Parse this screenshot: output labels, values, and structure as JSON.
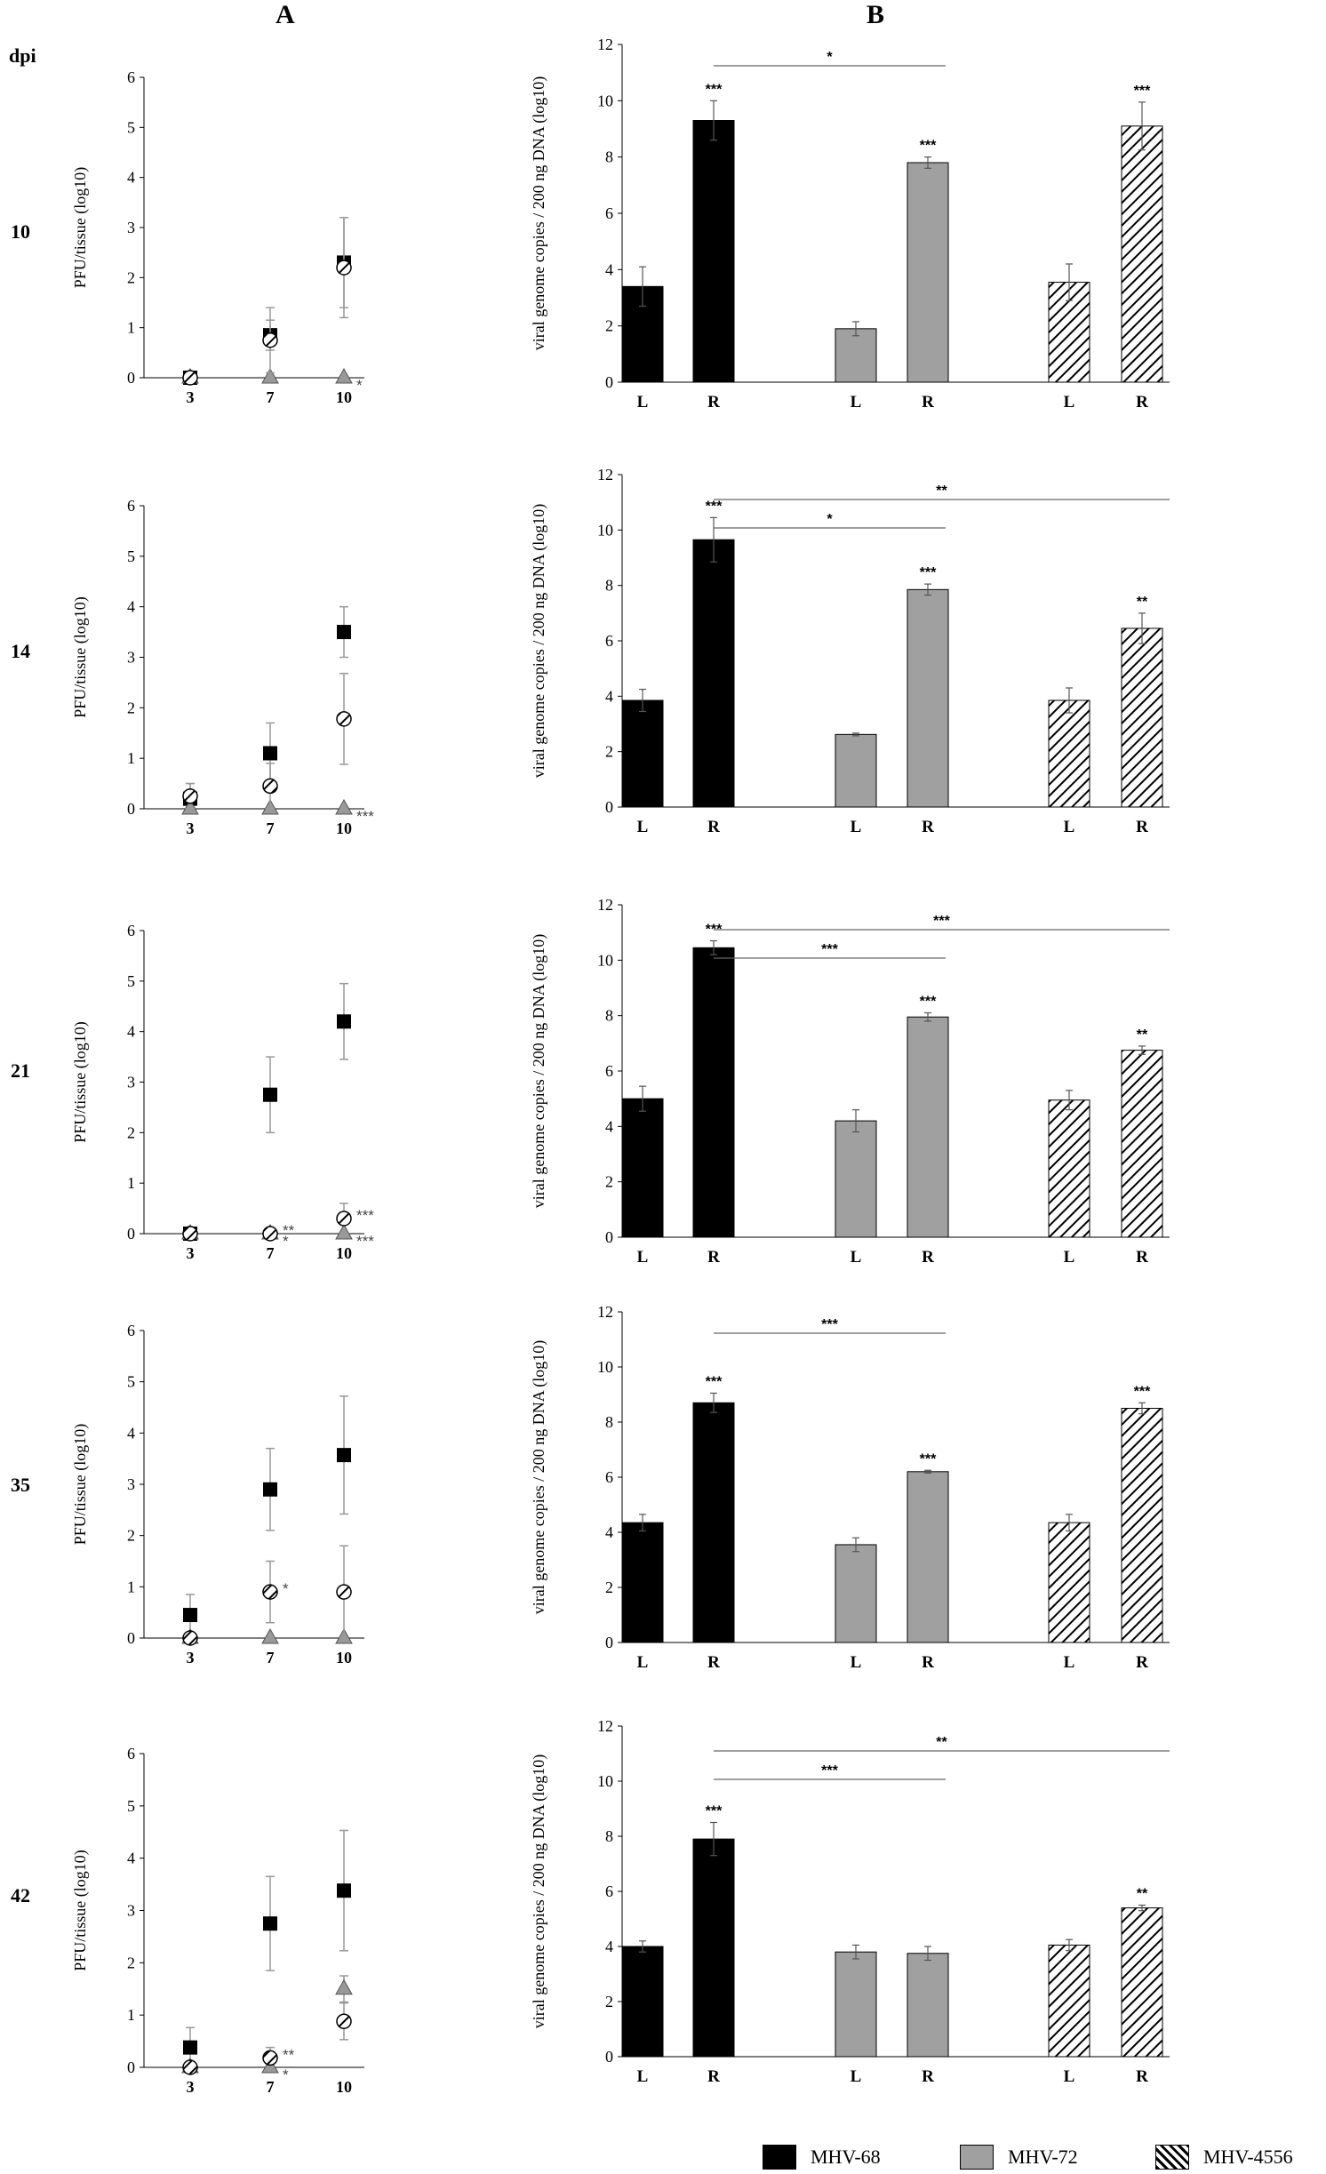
{
  "headers": {
    "a": "A",
    "b": "B",
    "dpi": "dpi"
  },
  "colors": {
    "mhv68": "#000000",
    "mhv72": "#a0a0a0",
    "mhv4556": "hatched"
  },
  "legend": [
    "MHV-68",
    "MHV-72",
    "MHV-4556"
  ],
  "chart_data": [
    {
      "panel": "A",
      "row": "10",
      "type": "scatter",
      "ylabel": "PFU/tissue (log10)",
      "ylim": [
        0,
        6
      ],
      "yticks": [
        "0",
        "1",
        "2",
        "3",
        "4",
        "5",
        "6"
      ],
      "categories": [
        "3",
        "7",
        "10"
      ],
      "series": [
        {
          "name": "MHV-68",
          "values": [
            0,
            0.85,
            2.3
          ],
          "err": [
            0,
            0.3,
            0.9
          ]
        },
        {
          "name": "MHV-72",
          "values": [
            0,
            0,
            0
          ],
          "err": [
            0,
            0,
            0
          ]
        },
        {
          "name": "MHV-4556",
          "values": [
            0,
            0.75,
            2.2
          ],
          "err": [
            0,
            0.65,
            1.0
          ]
        }
      ],
      "annotations": [
        {
          "text": "*",
          "cat": 2,
          "series": "MHV-72"
        }
      ]
    },
    {
      "panel": "A",
      "row": "14",
      "type": "scatter",
      "ylabel": "PFU/tissue (log10)",
      "ylim": [
        0,
        6
      ],
      "yticks": [
        "0",
        "1",
        "2",
        "3",
        "4",
        "5",
        "6"
      ],
      "categories": [
        "3",
        "7",
        "10"
      ],
      "series": [
        {
          "name": "MHV-68",
          "values": [
            0.2,
            1.1,
            3.5
          ],
          "err": [
            0.3,
            0.6,
            0.5
          ]
        },
        {
          "name": "MHV-72",
          "values": [
            0,
            0,
            0
          ],
          "err": [
            0,
            0,
            0
          ]
        },
        {
          "name": "MHV-4556",
          "values": [
            0.25,
            0.45,
            1.78
          ],
          "err": [
            0.25,
            0.45,
            0.9
          ]
        }
      ],
      "annotations": [
        {
          "text": "***",
          "cat": 2,
          "series": "MHV-72"
        }
      ]
    },
    {
      "panel": "A",
      "row": "21",
      "type": "scatter",
      "ylabel": "PFU/tissue (log10)",
      "ylim": [
        0,
        6
      ],
      "yticks": [
        "0",
        "1",
        "2",
        "3",
        "4",
        "5",
        "6"
      ],
      "categories": [
        "3",
        "7",
        "10"
      ],
      "series": [
        {
          "name": "MHV-68",
          "values": [
            0,
            2.75,
            4.2
          ],
          "err": [
            0,
            0.75,
            0.75
          ]
        },
        {
          "name": "MHV-72",
          "values": [
            0,
            0,
            0
          ],
          "err": [
            0,
            0,
            0
          ]
        },
        {
          "name": "MHV-4556",
          "values": [
            0,
            0,
            0.3
          ],
          "err": [
            0,
            0,
            0.3
          ]
        }
      ],
      "annotations": [
        {
          "text": "**",
          "cat": 1,
          "series": "MHV-4556"
        },
        {
          "text": "*",
          "cat": 1,
          "series": "MHV-72"
        },
        {
          "text": "***",
          "cat": 2,
          "series": "MHV-4556"
        },
        {
          "text": "***",
          "cat": 2,
          "series": "MHV-72"
        }
      ]
    },
    {
      "panel": "A",
      "row": "35",
      "type": "scatter",
      "ylabel": "PFU/tissue (log10)",
      "ylim": [
        0,
        6
      ],
      "yticks": [
        "0",
        "1",
        "2",
        "3",
        "4",
        "5",
        "6"
      ],
      "categories": [
        "3",
        "7",
        "10"
      ],
      "series": [
        {
          "name": "MHV-68",
          "values": [
            0.45,
            2.9,
            3.57
          ],
          "err": [
            0.4,
            0.8,
            1.15
          ]
        },
        {
          "name": "MHV-72",
          "values": [
            0,
            0,
            0
          ],
          "err": [
            0,
            0,
            0
          ]
        },
        {
          "name": "MHV-4556",
          "values": [
            0,
            0.9,
            0.9
          ],
          "err": [
            0,
            0.6,
            0.9
          ]
        }
      ],
      "annotations": [
        {
          "text": "*",
          "cat": 1,
          "series": "MHV-4556"
        }
      ]
    },
    {
      "panel": "A",
      "row": "42",
      "type": "scatter",
      "ylabel": "PFU/tissue (log10)",
      "ylim": [
        0,
        6
      ],
      "yticks": [
        "0",
        "1",
        "2",
        "3",
        "4",
        "5",
        "6"
      ],
      "categories": [
        "3",
        "7",
        "10"
      ],
      "series": [
        {
          "name": "MHV-68",
          "values": [
            0.38,
            2.75,
            3.38
          ],
          "err": [
            0.38,
            0.9,
            1.15
          ]
        },
        {
          "name": "MHV-72",
          "values": [
            0,
            0,
            1.5
          ],
          "err": [
            0,
            0,
            0.25
          ]
        },
        {
          "name": "MHV-4556",
          "values": [
            0,
            0.18,
            0.88
          ],
          "err": [
            0,
            0.2,
            0.35
          ]
        }
      ],
      "annotations": [
        {
          "text": "**",
          "cat": 1,
          "series": "MHV-4556"
        },
        {
          "text": "*",
          "cat": 1,
          "series": "MHV-72"
        }
      ]
    },
    {
      "panel": "B",
      "row": "10",
      "type": "bar",
      "ylabel": "viral genome copies / 200 ng DNA (log10)",
      "ylim": [
        0,
        12
      ],
      "yticks": [
        "0",
        "2",
        "4",
        "6",
        "8",
        "10",
        "12"
      ],
      "categories": [
        "L",
        "R",
        "L",
        "R",
        "L",
        "R"
      ],
      "values": [
        3.4,
        9.3,
        1.9,
        7.8,
        3.55,
        9.1
      ],
      "err": [
        0.7,
        0.7,
        0.25,
        0.2,
        0.65,
        0.85
      ],
      "sig": [
        "",
        "***",
        "",
        "***",
        "",
        "***"
      ],
      "brackets": [
        {
          "text": "*",
          "to": 3
        }
      ]
    },
    {
      "panel": "B",
      "row": "14",
      "type": "bar",
      "ylabel": "viral genome copies / 200 ng DNA (log10)",
      "ylim": [
        0,
        12
      ],
      "yticks": [
        "0",
        "2",
        "4",
        "6",
        "8",
        "10",
        "12"
      ],
      "categories": [
        "L",
        "R",
        "L",
        "R",
        "L",
        "R"
      ],
      "values": [
        3.85,
        9.65,
        2.62,
        7.85,
        3.85,
        6.45
      ],
      "err": [
        0.4,
        0.8,
        0.05,
        0.2,
        0.45,
        0.55
      ],
      "sig": [
        "",
        "***",
        "",
        "***",
        "",
        "**"
      ],
      "brackets": [
        {
          "text": "**",
          "to": 5
        },
        {
          "text": "*",
          "to": 3
        }
      ]
    },
    {
      "panel": "B",
      "row": "21",
      "type": "bar",
      "ylabel": "viral genome copies / 200 ng DNA (log10)",
      "ylim": [
        0,
        12
      ],
      "yticks": [
        "0",
        "2",
        "4",
        "6",
        "8",
        "10",
        "12"
      ],
      "categories": [
        "L",
        "R",
        "L",
        "R",
        "L",
        "R"
      ],
      "values": [
        5.0,
        10.45,
        4.2,
        7.95,
        4.95,
        6.75
      ],
      "err": [
        0.45,
        0.25,
        0.4,
        0.15,
        0.35,
        0.15
      ],
      "sig": [
        "",
        "***",
        "",
        "***",
        "",
        "**"
      ],
      "brackets": [
        {
          "text": "***",
          "to": 5
        },
        {
          "text": "***",
          "to": 3
        }
      ]
    },
    {
      "panel": "B",
      "row": "35",
      "type": "bar",
      "ylabel": "viral genome copies / 200 ng DNA (log10)",
      "ylim": [
        0,
        12
      ],
      "yticks": [
        "0",
        "2",
        "4",
        "6",
        "8",
        "10",
        "12"
      ],
      "categories": [
        "L",
        "R",
        "L",
        "R",
        "L",
        "R"
      ],
      "values": [
        4.35,
        8.7,
        3.55,
        6.2,
        4.35,
        8.5
      ],
      "err": [
        0.3,
        0.35,
        0.25,
        0.05,
        0.3,
        0.2
      ],
      "sig": [
        "",
        "***",
        "",
        "***",
        "",
        "***"
      ],
      "brackets": [
        {
          "text": "***",
          "to": 3
        }
      ]
    },
    {
      "panel": "B",
      "row": "42",
      "type": "bar",
      "ylabel": "viral genome copies / 200 ng DNA (log10)",
      "ylim": [
        0,
        12
      ],
      "yticks": [
        "0",
        "2",
        "4",
        "6",
        "8",
        "10",
        "12"
      ],
      "categories": [
        "L",
        "R",
        "L",
        "R",
        "L",
        "R"
      ],
      "values": [
        4.0,
        7.9,
        3.8,
        3.75,
        4.05,
        5.4
      ],
      "err": [
        0.2,
        0.6,
        0.25,
        0.25,
        0.2,
        0.1
      ],
      "sig": [
        "",
        "***",
        "",
        "",
        "",
        "**"
      ],
      "brackets": [
        {
          "text": "**",
          "to": 5
        },
        {
          "text": "***",
          "to": 3
        }
      ]
    }
  ]
}
